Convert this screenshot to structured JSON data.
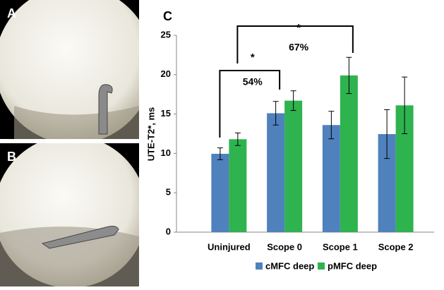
{
  "photos": [
    {
      "label": "A"
    },
    {
      "label": "B"
    }
  ],
  "chart_data": {
    "type": "bar",
    "panel_label": "C",
    "ylabel": "UTE-T2*, ms",
    "categories": [
      "Uninjured",
      "Scope 0",
      "Scope 1",
      "Scope 2"
    ],
    "series": [
      {
        "name": "cMFC deep",
        "color": "#4f81bd",
        "values": [
          9.95,
          15.1,
          13.6,
          12.45
        ],
        "errors": [
          0.75,
          1.5,
          1.75,
          3.1
        ]
      },
      {
        "name": "pMFC deep",
        "color": "#2eb34f",
        "values": [
          11.8,
          16.7,
          19.9,
          16.1
        ],
        "errors": [
          0.8,
          1.25,
          2.3,
          3.6
        ]
      }
    ],
    "ylim": [
      0,
      25
    ],
    "yticks": [
      0,
      5,
      10,
      15,
      20,
      25
    ],
    "annotations": [
      {
        "star": "*",
        "label": "54%"
      },
      {
        "star": "*",
        "label": "67%"
      }
    ]
  }
}
